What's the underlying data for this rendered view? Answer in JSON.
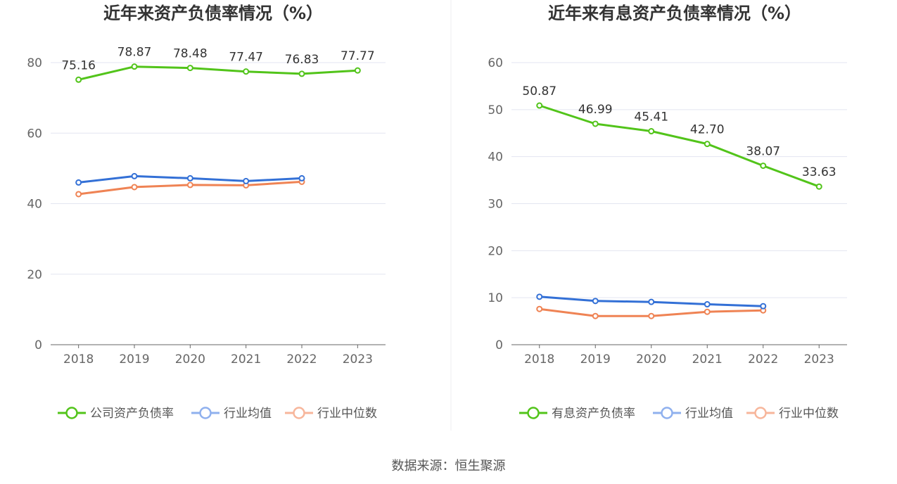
{
  "source_text": "数据来源：恒生聚源",
  "chart_data": [
    {
      "type": "line",
      "title": "近年来资产负债率情况（%）",
      "categories": [
        "2018",
        "2019",
        "2020",
        "2021",
        "2022",
        "2023"
      ],
      "ylim": [
        0,
        80
      ],
      "yticks": [
        0,
        20,
        40,
        60,
        80
      ],
      "grid": true,
      "legend_position": "bottom",
      "series": [
        {
          "name": "公司资产负债率",
          "color": "#52c41a",
          "values": [
            75.16,
            78.87,
            78.48,
            77.47,
            76.83,
            77.77
          ],
          "labels": [
            "75.16",
            "78.87",
            "78.48",
            "77.47",
            "76.83",
            "77.77"
          ]
        },
        {
          "name": "行业均值",
          "color": "#3370d6",
          "values": [
            46.0,
            47.8,
            47.2,
            46.4,
            47.2,
            null
          ]
        },
        {
          "name": "行业中位数",
          "color": "#ef8354",
          "values": [
            42.7,
            44.7,
            45.3,
            45.2,
            46.2,
            null
          ]
        }
      ]
    },
    {
      "type": "line",
      "title": "近年来有息资产负债率情况（%）",
      "categories": [
        "2018",
        "2019",
        "2020",
        "2021",
        "2022",
        "2023"
      ],
      "ylim": [
        0,
        60
      ],
      "yticks": [
        0,
        10,
        20,
        30,
        40,
        50,
        60
      ],
      "grid": true,
      "legend_position": "bottom",
      "series": [
        {
          "name": "有息资产负债率",
          "color": "#52c41a",
          "values": [
            50.87,
            46.99,
            45.41,
            42.7,
            38.07,
            33.63
          ],
          "labels": [
            "50.87",
            "46.99",
            "45.41",
            "42.70",
            "38.07",
            "33.63"
          ]
        },
        {
          "name": "行业均值",
          "color": "#3370d6",
          "values": [
            10.2,
            9.3,
            9.1,
            8.6,
            8.2,
            null
          ]
        },
        {
          "name": "行业中位数",
          "color": "#ef8354",
          "values": [
            7.6,
            6.1,
            6.1,
            7.0,
            7.3,
            null
          ]
        }
      ]
    }
  ]
}
